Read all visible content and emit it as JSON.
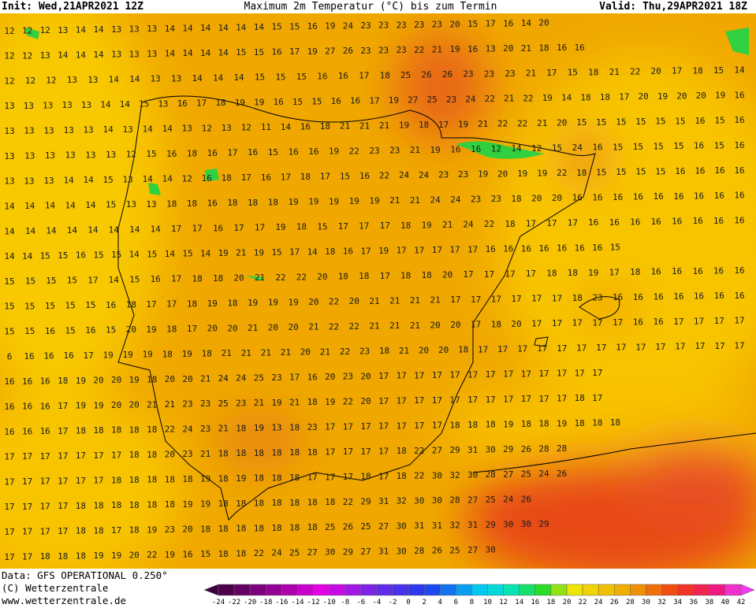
{
  "header": {
    "init": "Init: Wed,21APR2021 12Z",
    "title": "Maximum 2m Temperatur (°C) bis zum Termin",
    "valid": "Valid: Thu,29APR2021 18Z"
  },
  "footer": {
    "data": "Data: GFS OPERATIONAL 0.250°",
    "copyright": "(C) Wetterzentrale",
    "url": "www.wetterzentrale.de"
  },
  "colorbar": {
    "labels": [
      -24,
      -22,
      -20,
      -18,
      -16,
      -14,
      -12,
      -10,
      -8,
      -6,
      -4,
      -2,
      0,
      2,
      4,
      6,
      8,
      10,
      12,
      14,
      16,
      18,
      20,
      22,
      24,
      26,
      28,
      30,
      32,
      34,
      36,
      38,
      40,
      42
    ]
  },
  "grid": {
    "rows": [
      [
        12,
        12,
        12,
        13,
        14,
        14,
        13,
        13,
        13,
        14,
        14,
        14,
        14,
        14,
        14,
        15,
        15,
        16,
        19,
        24,
        23,
        23,
        23,
        23,
        23,
        20,
        15,
        17,
        16,
        14,
        20
      ],
      [
        12,
        12,
        13,
        14,
        14,
        14,
        13,
        13,
        13,
        14,
        14,
        14,
        14,
        15,
        15,
        16,
        17,
        19,
        27,
        26,
        23,
        23,
        23,
        22,
        21,
        19,
        16,
        13,
        20,
        21,
        18,
        16,
        16
      ],
      [
        12,
        12,
        12,
        13,
        13,
        14,
        14,
        13,
        13,
        14,
        14,
        14,
        15,
        15,
        15,
        16,
        16,
        17,
        18,
        25,
        26,
        26,
        23,
        23,
        23,
        21,
        17,
        15,
        18,
        21,
        22,
        20,
        17,
        18,
        15,
        14
      ],
      [
        13,
        13,
        13,
        13,
        13,
        14,
        14,
        15,
        13,
        16,
        17,
        18,
        19,
        19,
        16,
        15,
        15,
        16,
        16,
        17,
        19,
        27,
        25,
        23,
        24,
        22,
        21,
        22,
        19,
        14,
        18,
        18,
        17,
        20,
        19,
        20,
        20,
        19,
        16
      ],
      [
        13,
        13,
        13,
        13,
        13,
        14,
        13,
        14,
        14,
        13,
        12,
        13,
        12,
        11,
        14,
        16,
        18,
        21,
        21,
        21,
        19,
        18,
        17,
        19,
        21,
        22,
        22,
        21,
        20,
        15,
        15,
        15,
        15,
        15,
        15,
        16,
        15,
        16
      ],
      [
        13,
        13,
        13,
        13,
        13,
        13,
        12,
        15,
        16,
        18,
        16,
        17,
        16,
        15,
        16,
        16,
        19,
        22,
        23,
        23,
        21,
        19,
        16,
        16,
        12,
        14,
        12,
        15,
        24,
        16,
        15,
        15,
        15,
        15,
        16,
        15,
        16
      ],
      [
        13,
        13,
        13,
        14,
        14,
        15,
        13,
        14,
        14,
        12,
        16,
        18,
        17,
        16,
        17,
        18,
        17,
        15,
        16,
        22,
        24,
        24,
        23,
        23,
        19,
        20,
        19,
        19,
        22,
        18,
        15,
        15,
        15,
        15,
        16,
        16,
        16,
        16
      ],
      [
        14,
        14,
        14,
        14,
        14,
        15,
        13,
        13,
        18,
        18,
        16,
        18,
        18,
        18,
        19,
        19,
        19,
        19,
        19,
        21,
        21,
        24,
        24,
        23,
        23,
        18,
        20,
        20,
        16,
        16,
        16,
        16,
        16,
        16,
        16,
        16,
        16
      ],
      [
        14,
        14,
        14,
        14,
        14,
        14,
        14,
        14,
        17,
        17,
        16,
        17,
        17,
        19,
        18,
        15,
        17,
        17,
        17,
        18,
        19,
        21,
        24,
        22,
        18,
        17,
        17,
        17,
        16,
        16,
        16,
        16,
        16,
        16,
        16,
        16
      ],
      [
        14,
        14,
        15,
        15,
        16,
        15,
        15,
        14,
        15,
        14,
        15,
        14,
        19,
        21,
        19,
        15,
        17,
        14,
        18,
        16,
        17,
        19,
        17,
        17,
        17,
        17,
        17,
        16,
        16,
        16,
        16,
        16,
        16,
        16,
        15
      ],
      [
        15,
        15,
        15,
        15,
        17,
        14,
        15,
        16,
        17,
        18,
        18,
        20,
        21,
        22,
        22,
        20,
        18,
        18,
        17,
        18,
        18,
        20,
        17,
        17,
        17,
        17,
        18,
        18,
        19,
        17,
        18,
        16,
        16,
        16,
        16,
        16
      ],
      [
        15,
        15,
        15,
        15,
        15,
        16,
        18,
        17,
        17,
        18,
        19,
        18,
        19,
        19,
        19,
        20,
        22,
        20,
        21,
        21,
        21,
        21,
        17,
        17,
        17,
        17,
        17,
        17,
        18,
        23,
        16,
        16,
        16,
        16,
        16,
        16,
        16
      ],
      [
        15,
        15,
        16,
        15,
        16,
        15,
        20,
        19,
        18,
        17,
        20,
        20,
        21,
        20,
        20,
        21,
        22,
        22,
        21,
        21,
        21,
        20,
        20,
        17,
        18,
        20,
        17,
        17,
        17,
        17,
        17,
        16,
        16,
        17,
        17,
        17,
        17
      ],
      [
        6,
        16,
        16,
        16,
        17,
        19,
        19,
        19,
        18,
        19,
        18,
        21,
        21,
        21,
        21,
        20,
        21,
        22,
        23,
        18,
        21,
        20,
        20,
        18,
        17,
        17,
        17,
        17,
        17,
        17,
        17,
        17,
        17,
        17,
        17,
        17,
        17,
        17
      ],
      [
        16,
        16,
        16,
        18,
        19,
        20,
        20,
        19,
        18,
        20,
        20,
        21,
        24,
        24,
        25,
        23,
        17,
        16,
        20,
        23,
        20,
        17,
        17,
        17,
        17,
        17,
        17,
        17,
        17,
        17,
        17,
        17,
        17,
        17
      ],
      [
        16,
        16,
        16,
        17,
        19,
        19,
        20,
        20,
        21,
        21,
        23,
        23,
        25,
        23,
        21,
        19,
        21,
        18,
        19,
        22,
        20,
        17,
        17,
        17,
        17,
        17,
        17,
        17,
        17,
        17,
        17,
        17,
        18,
        17
      ],
      [
        16,
        16,
        16,
        17,
        18,
        18,
        18,
        18,
        18,
        22,
        24,
        23,
        21,
        18,
        19,
        13,
        18,
        23,
        17,
        17,
        17,
        17,
        17,
        17,
        17,
        18,
        18,
        18,
        19,
        18,
        18,
        19,
        18,
        18,
        18
      ],
      [
        17,
        17,
        17,
        17,
        17,
        17,
        17,
        18,
        18,
        20,
        23,
        21,
        18,
        18,
        18,
        18,
        18,
        18,
        17,
        17,
        17,
        17,
        18,
        22,
        27,
        29,
        31,
        30,
        29,
        26,
        28,
        28
      ],
      [
        17,
        17,
        17,
        17,
        17,
        17,
        18,
        18,
        18,
        18,
        18,
        19,
        18,
        19,
        18,
        18,
        18,
        17,
        17,
        17,
        18,
        17,
        18,
        22,
        30,
        32,
        30,
        28,
        27,
        25,
        24,
        26
      ],
      [
        17,
        17,
        17,
        17,
        18,
        18,
        18,
        18,
        18,
        18,
        19,
        19,
        18,
        18,
        18,
        18,
        18,
        18,
        18,
        22,
        29,
        31,
        32,
        30,
        30,
        28,
        27,
        25,
        24,
        26
      ],
      [
        17,
        17,
        17,
        17,
        18,
        18,
        17,
        18,
        19,
        23,
        20,
        18,
        18,
        18,
        18,
        18,
        18,
        18,
        25,
        26,
        25,
        27,
        30,
        31,
        31,
        32,
        31,
        29,
        30,
        30,
        29
      ],
      [
        17,
        17,
        18,
        18,
        18,
        19,
        19,
        20,
        22,
        19,
        16,
        15,
        18,
        18,
        22,
        24,
        25,
        27,
        30,
        29,
        27,
        31,
        30,
        28,
        26,
        25,
        27,
        30
      ]
    ]
  }
}
